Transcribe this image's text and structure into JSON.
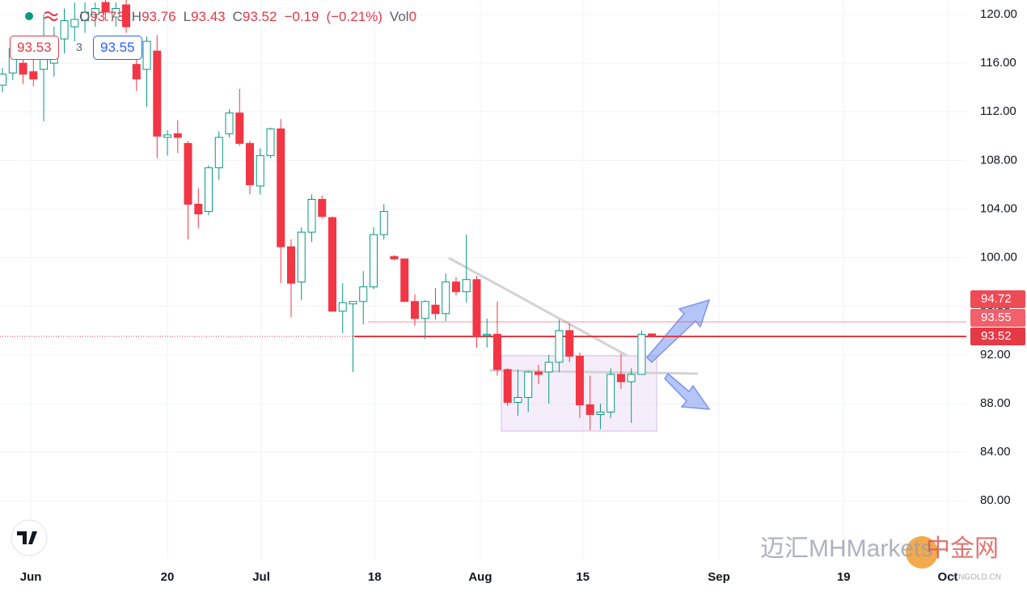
{
  "chart_data": {
    "type": "candlestick",
    "open": [
      114.2,
      115.2,
      116.0,
      115.3,
      115.5,
      116.0,
      118.0,
      119.0,
      119.5,
      120.0,
      121.0,
      119.8,
      120.8,
      115.9,
      115.5,
      117.0,
      109.9,
      110.2,
      109.4,
      104.4,
      103.8,
      107.4,
      110.2,
      111.9,
      109.4,
      105.9,
      108.4,
      110.6,
      100.9,
      98.0,
      102.1,
      104.8,
      103.3,
      95.6,
      96.2,
      96.4,
      97.6,
      101.9,
      100.1,
      99.9,
      96.4,
      95.0,
      96.1,
      95.4,
      98.0,
      97.2,
      98.2,
      93.6,
      93.7,
      90.8,
      88.1,
      88.5,
      90.6,
      90.6,
      91.4,
      94.0,
      91.9,
      87.9,
      87.1,
      87.3,
      90.4,
      89.8,
      90.4,
      93.73
    ],
    "high": [
      115.6,
      118.0,
      117.0,
      117.5,
      120.0,
      119.0,
      120.5,
      121.0,
      121.0,
      121.0,
      121.5,
      121.0,
      121.3,
      117.4,
      118.2,
      118.3,
      110.5,
      111.3,
      109.6,
      105.7,
      107.6,
      110.4,
      112.2,
      113.9,
      109.6,
      109.0,
      110.7,
      111.4,
      101.5,
      102.5,
      105.2,
      105.1,
      103.4,
      97.9,
      96.4,
      98.9,
      102.5,
      104.4,
      100.2,
      99.9,
      97.0,
      96.5,
      97.5,
      98.7,
      98.4,
      101.9,
      98.5,
      95.0,
      96.4,
      90.9,
      90.8,
      90.7,
      91.2,
      92.0,
      94.9,
      94.6,
      92.2,
      90.3,
      88.0,
      90.9,
      92.1,
      90.9,
      94.0,
      93.76
    ],
    "low": [
      113.6,
      114.6,
      114.3,
      114.1,
      111.2,
      114.9,
      116.8,
      117.8,
      118.5,
      119.0,
      119.5,
      119.0,
      118.5,
      113.7,
      112.4,
      108.2,
      108.4,
      108.6,
      101.5,
      102.4,
      103.5,
      106.4,
      109.9,
      109.2,
      105.2,
      105.2,
      108.2,
      97.9,
      95.1,
      96.5,
      101.3,
      103.2,
      95.6,
      93.8,
      90.6,
      94.5,
      97.4,
      101.5,
      99.8,
      96.4,
      94.4,
      93.3,
      94.9,
      94.8,
      96.9,
      96.3,
      92.6,
      92.6,
      90.3,
      87.8,
      87.0,
      87.3,
      89.6,
      88.0,
      90.6,
      91.4,
      86.8,
      85.8,
      85.9,
      86.8,
      89.2,
      86.4,
      90.4,
      93.43
    ],
    "close": [
      115.1,
      117.2,
      115.1,
      114.7,
      117.8,
      118.0,
      119.5,
      119.6,
      120.2,
      120.5,
      120.2,
      120.5,
      119.0,
      114.7,
      117.8,
      110.0,
      110.1,
      109.9,
      104.4,
      103.6,
      107.4,
      109.9,
      111.9,
      109.4,
      106.0,
      108.4,
      110.6,
      100.9,
      97.9,
      102.1,
      104.8,
      103.4,
      95.6,
      96.3,
      96.4,
      97.6,
      101.9,
      103.8,
      99.9,
      96.4,
      95.0,
      96.4,
      95.4,
      98.0,
      97.2,
      98.2,
      93.6,
      93.7,
      90.8,
      88.1,
      88.5,
      90.6,
      90.4,
      91.4,
      94.0,
      91.9,
      87.9,
      87.1,
      87.3,
      90.4,
      89.8,
      90.4,
      93.7,
      93.52
    ],
    "up_color": "#089981",
    "down_color": "#f23645",
    "xlim": [
      -0.24,
      93.5
    ],
    "ylim": [
      75.16,
      121.2
    ],
    "xticks": [
      {
        "value": 2.75,
        "label": "Jun"
      },
      {
        "value": 16,
        "label": "20"
      },
      {
        "value": 25.1,
        "label": "Jul"
      },
      {
        "value": 36.1,
        "label": "18"
      },
      {
        "value": 46.35,
        "label": "Aug"
      },
      {
        "value": 56.3,
        "label": "15"
      },
      {
        "value": 69.5,
        "label": "Sep"
      },
      {
        "value": 81.6,
        "label": "19"
      },
      {
        "value": 91.7,
        "label": "Oct"
      }
    ],
    "yticks": [
      {
        "value": 80,
        "label": "80.00"
      },
      {
        "value": 84,
        "label": "84.00"
      },
      {
        "value": 88,
        "label": "88.00"
      },
      {
        "value": 92,
        "label": "92.00"
      },
      {
        "value": 96,
        "label": "96.00"
      },
      {
        "value": 100,
        "label": "100.00"
      },
      {
        "value": 104,
        "label": "104.00"
      },
      {
        "value": 108,
        "label": "108.00"
      },
      {
        "value": 112,
        "label": "112.00"
      },
      {
        "value": 116,
        "label": "116.00"
      },
      {
        "value": 120,
        "label": "120.00"
      }
    ],
    "grid": true,
    "header": {
      "open_label": "O",
      "high_label": "H",
      "low_label": "L",
      "close_label": "C",
      "change": "−0.19",
      "change_percent": "(−0.21%)",
      "volume_label": "Vol",
      "volume": 0
    },
    "bid": 93.53,
    "spread": 3,
    "ask": 93.55,
    "price_labels": [
      {
        "value": 94.72,
        "color": "#ef4b56"
      },
      {
        "value": 93.55,
        "color": "#f2606b"
      },
      {
        "value": 93.52,
        "color": "#e53946"
      }
    ],
    "watermark": [
      "迈汇MHMarkets",
      "中金网",
      "CNGOLD.CN"
    ]
  }
}
